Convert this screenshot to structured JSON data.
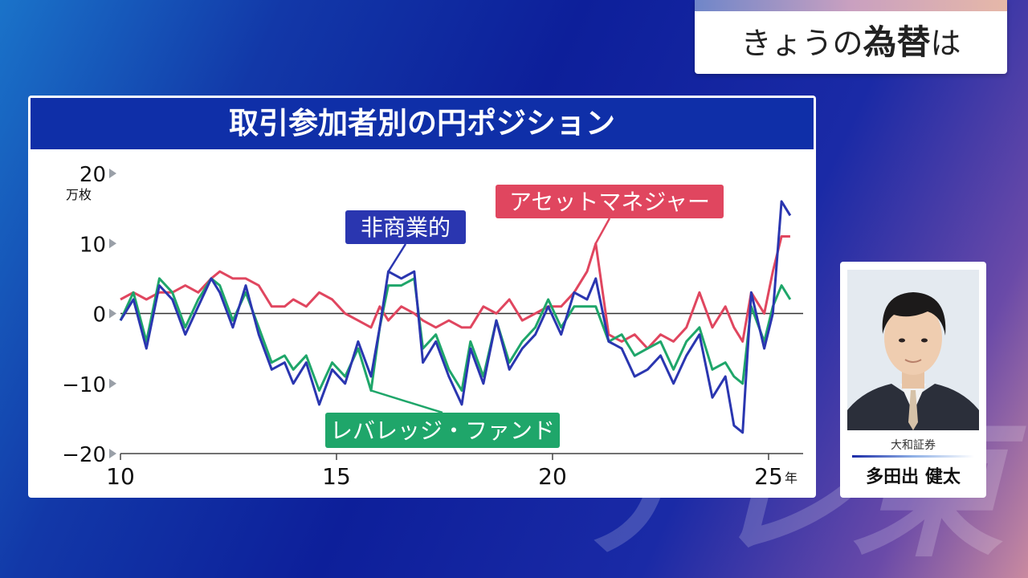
{
  "topbox": {
    "prefix": "きょうの",
    "highlight": "為替",
    "suffix": "は"
  },
  "panel": {
    "title": "取引参加者別の円ポジション"
  },
  "person": {
    "company": "大和証券",
    "name": "多田出 健太"
  },
  "watermark": "テレ東",
  "colors": {
    "nonCommercial": "#2a36b0",
    "assetManager": "#e0465f",
    "leveraged": "#1fa66a",
    "titleBar": "#0f2fa8"
  },
  "chart_data": {
    "type": "line",
    "title": "取引参加者別の円ポジション",
    "ylabel": "万枚",
    "xlabel": "年",
    "ylim": [
      -20,
      20
    ],
    "xlim": [
      2010,
      2025.8
    ],
    "y_ticks": [
      20,
      10,
      0,
      -10,
      -20
    ],
    "y_tick_labels": [
      "20",
      "10",
      "0",
      "−10",
      "−20"
    ],
    "x_ticks": [
      2010,
      2015,
      2020,
      2025
    ],
    "x_tick_labels": [
      "10",
      "15",
      "20",
      "25"
    ],
    "x_unit": "年",
    "legend": "inline-labels",
    "labels": {
      "nonCommercial": "非商業的",
      "assetManager": "アセットマネジャー",
      "leveraged": "レバレッジ・ファンド"
    },
    "series": [
      {
        "name": "非商業的",
        "color": "#2a36b0",
        "x": [
          2010.0,
          2010.3,
          2010.6,
          2010.9,
          2011.2,
          2011.5,
          2011.8,
          2012.1,
          2012.3,
          2012.6,
          2012.9,
          2013.2,
          2013.5,
          2013.8,
          2014.0,
          2014.3,
          2014.6,
          2014.9,
          2015.2,
          2015.5,
          2015.8,
          2016.0,
          2016.2,
          2016.5,
          2016.8,
          2017.0,
          2017.3,
          2017.6,
          2017.9,
          2018.1,
          2018.4,
          2018.7,
          2019.0,
          2019.3,
          2019.6,
          2019.9,
          2020.2,
          2020.5,
          2020.8,
          2021.0,
          2021.3,
          2021.6,
          2021.9,
          2022.2,
          2022.5,
          2022.8,
          2023.1,
          2023.4,
          2023.7,
          2024.0,
          2024.2,
          2024.4,
          2024.6,
          2024.9,
          2025.1,
          2025.3,
          2025.5
        ],
        "y": [
          -1,
          2,
          -5,
          4,
          2,
          -3,
          1,
          5,
          3,
          -2,
          4,
          -3,
          -8,
          -7,
          -10,
          -7,
          -13,
          -8,
          -10,
          -4,
          -9,
          -2,
          6,
          5,
          6,
          -7,
          -4,
          -9,
          -13,
          -5,
          -10,
          -1,
          -8,
          -5,
          -3,
          1,
          -3,
          3,
          2,
          5,
          -4,
          -5,
          -9,
          -8,
          -6,
          -10,
          -6,
          -3,
          -12,
          -9,
          -16,
          -17,
          3,
          -5,
          0,
          16,
          14
        ]
      },
      {
        "name": "アセットマネジャー",
        "color": "#e0465f",
        "x": [
          2010.0,
          2010.3,
          2010.6,
          2010.9,
          2011.2,
          2011.5,
          2011.8,
          2012.1,
          2012.3,
          2012.6,
          2012.9,
          2013.2,
          2013.5,
          2013.8,
          2014.0,
          2014.3,
          2014.6,
          2014.9,
          2015.2,
          2015.5,
          2015.8,
          2016.0,
          2016.2,
          2016.5,
          2016.8,
          2017.0,
          2017.3,
          2017.6,
          2017.9,
          2018.1,
          2018.4,
          2018.7,
          2019.0,
          2019.3,
          2019.6,
          2019.9,
          2020.2,
          2020.5,
          2020.8,
          2021.0,
          2021.3,
          2021.6,
          2021.9,
          2022.2,
          2022.5,
          2022.8,
          2023.1,
          2023.4,
          2023.7,
          2024.0,
          2024.2,
          2024.4,
          2024.6,
          2024.9,
          2025.1,
          2025.3,
          2025.5
        ],
        "y": [
          2,
          3,
          2,
          3,
          3,
          4,
          3,
          5,
          6,
          5,
          5,
          4,
          1,
          1,
          2,
          1,
          3,
          2,
          0,
          -1,
          -2,
          1,
          -1,
          1,
          0,
          -1,
          -2,
          -1,
          -2,
          -2,
          1,
          0,
          2,
          -1,
          0,
          1,
          1,
          3,
          6,
          10,
          -3,
          -4,
          -3,
          -5,
          -3,
          -4,
          -2,
          3,
          -2,
          1,
          -2,
          -4,
          3,
          0,
          6,
          11,
          11
        ]
      },
      {
        "name": "レバレッジ・ファンド",
        "color": "#1fa66a",
        "x": [
          2010.0,
          2010.3,
          2010.6,
          2010.9,
          2011.2,
          2011.5,
          2011.8,
          2012.1,
          2012.3,
          2012.6,
          2012.9,
          2013.2,
          2013.5,
          2013.8,
          2014.0,
          2014.3,
          2014.6,
          2014.9,
          2015.2,
          2015.5,
          2015.8,
          2016.0,
          2016.2,
          2016.5,
          2016.8,
          2017.0,
          2017.3,
          2017.6,
          2017.9,
          2018.1,
          2018.4,
          2018.7,
          2019.0,
          2019.3,
          2019.6,
          2019.9,
          2020.2,
          2020.5,
          2020.8,
          2021.0,
          2021.3,
          2021.6,
          2021.9,
          2022.2,
          2022.5,
          2022.8,
          2023.1,
          2023.4,
          2023.7,
          2024.0,
          2024.2,
          2024.4,
          2024.6,
          2024.9,
          2025.1,
          2025.3,
          2025.5
        ],
        "y": [
          -1,
          3,
          -4,
          5,
          3,
          -2,
          2,
          5,
          4,
          -1,
          3,
          -2,
          -7,
          -6,
          -8,
          -6,
          -11,
          -7,
          -9,
          -5,
          -11,
          -2,
          4,
          4,
          5,
          -5,
          -3,
          -8,
          -11,
          -4,
          -9,
          -1,
          -7,
          -4,
          -2,
          2,
          -2,
          1,
          1,
          1,
          -4,
          -3,
          -6,
          -5,
          -4,
          -8,
          -4,
          -2,
          -8,
          -7,
          -9,
          -10,
          1,
          -4,
          1,
          4,
          2
        ]
      }
    ]
  }
}
